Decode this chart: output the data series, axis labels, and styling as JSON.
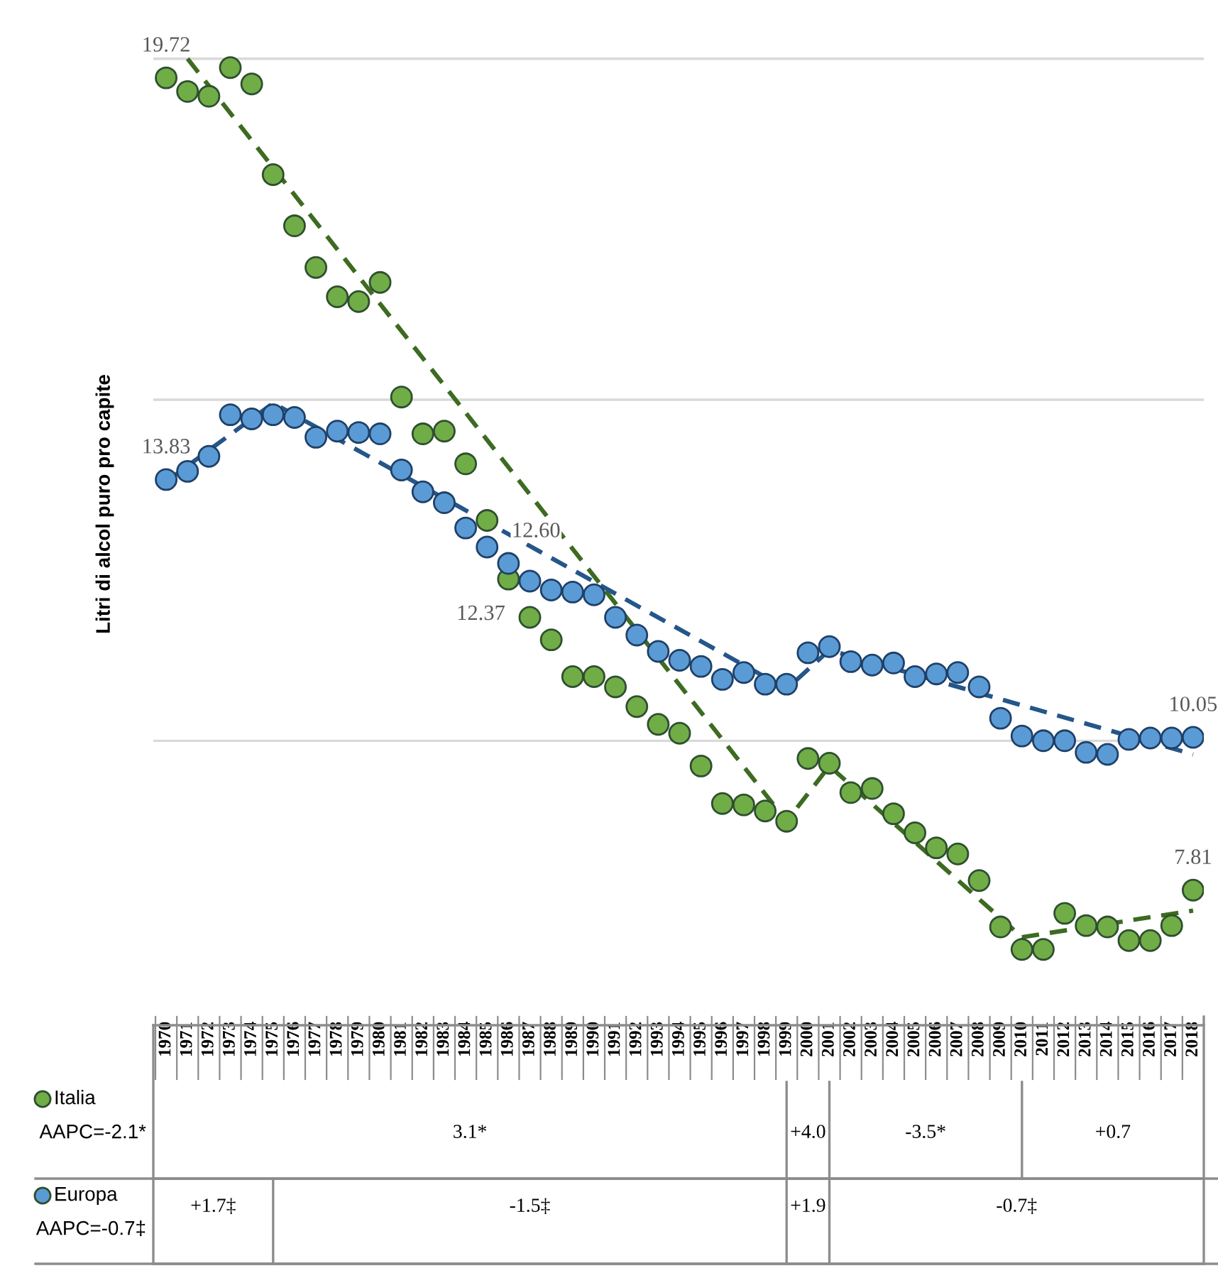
{
  "chart_data": {
    "type": "scatter",
    "ylabel": "Litri di alcol puro pro capite",
    "x": [
      1970,
      1971,
      1972,
      1973,
      1974,
      1975,
      1976,
      1977,
      1978,
      1979,
      1980,
      1981,
      1982,
      1983,
      1984,
      1985,
      1986,
      1987,
      1988,
      1989,
      1990,
      1991,
      1992,
      1993,
      1994,
      1995,
      1996,
      1997,
      1998,
      1999,
      2000,
      2001,
      2002,
      2003,
      2004,
      2005,
      2006,
      2007,
      2008,
      2009,
      2010,
      2011,
      2012,
      2013,
      2014,
      2015,
      2016,
      2017,
      2018
    ],
    "series": [
      {
        "name": "Italia",
        "marker": "circle",
        "color": "#70ad47",
        "values": [
          19.72,
          19.52,
          19.45,
          19.87,
          19.63,
          18.3,
          17.55,
          16.94,
          16.51,
          16.44,
          16.72,
          15.04,
          14.5,
          14.54,
          14.06,
          13.23,
          12.37,
          11.81,
          11.48,
          10.94,
          10.94,
          10.79,
          10.5,
          10.24,
          10.11,
          9.63,
          9.08,
          9.06,
          8.97,
          8.82,
          9.74,
          9.67,
          9.24,
          9.3,
          8.93,
          8.65,
          8.43,
          8.34,
          7.95,
          7.27,
          6.94,
          6.94,
          7.47,
          7.29,
          7.27,
          7.07,
          7.07,
          7.29,
          7.81
        ],
        "value_labels": [
          "19.72",
          null,
          null,
          null,
          null,
          null,
          null,
          null,
          null,
          null,
          null,
          null,
          null,
          null,
          null,
          null,
          "12.37",
          null,
          null,
          null,
          null,
          null,
          null,
          null,
          null,
          null,
          null,
          null,
          null,
          null,
          null,
          null,
          null,
          null,
          null,
          null,
          null,
          null,
          null,
          null,
          null,
          null,
          null,
          null,
          null,
          null,
          null,
          null,
          "7.81"
        ]
      },
      {
        "name": "Europa",
        "marker": "circle",
        "color": "#5b9bd5",
        "values": [
          13.83,
          13.95,
          14.17,
          14.78,
          14.72,
          14.78,
          14.74,
          14.45,
          14.54,
          14.52,
          14.5,
          13.97,
          13.65,
          13.49,
          13.12,
          12.84,
          12.6,
          12.34,
          12.21,
          12.18,
          12.14,
          11.81,
          11.55,
          11.31,
          11.18,
          11.09,
          10.9,
          11.0,
          10.83,
          10.83,
          11.29,
          11.38,
          11.16,
          11.11,
          11.14,
          10.94,
          10.98,
          11.0,
          10.79,
          10.33,
          10.07,
          10.0,
          10.0,
          9.83,
          9.8,
          10.02,
          10.04,
          10.04,
          10.05
        ],
        "value_labels": [
          "13.83",
          null,
          null,
          null,
          null,
          null,
          null,
          null,
          null,
          null,
          null,
          null,
          null,
          null,
          null,
          null,
          "12.60",
          null,
          null,
          null,
          null,
          null,
          null,
          null,
          null,
          null,
          null,
          null,
          null,
          null,
          null,
          null,
          null,
          null,
          null,
          null,
          null,
          null,
          null,
          null,
          null,
          null,
          null,
          null,
          null,
          null,
          null,
          null,
          "10.05"
        ]
      },
      {
        "type": "line",
        "marker": "none",
        "color": "#3d6b21",
        "line_style": "dashed",
        "x": [
          1971,
          1999,
          2001,
          2010,
          2018
        ],
        "values": [
          20.0,
          8.82,
          9.63,
          7.12,
          7.51
        ]
      },
      {
        "type": "line",
        "marker": "none",
        "color": "#24568a",
        "line_style": "dashed",
        "x": [
          1970,
          1975,
          1999,
          2001,
          2018
        ],
        "values": [
          13.8,
          14.95,
          10.76,
          11.33,
          9.8
        ]
      }
    ],
    "xlim": [
      1969.4,
      2018.5
    ],
    "xticks": [
      1970,
      1971,
      1972,
      1973,
      1974,
      1975,
      1976,
      1977,
      1978,
      1979,
      1980,
      1981,
      1982,
      1983,
      1984,
      1985,
      1986,
      1987,
      1988,
      1989,
      1990,
      1991,
      1992,
      1993,
      1994,
      1995,
      1996,
      1997,
      1998,
      1999,
      2000,
      2001,
      2002,
      2003,
      2004,
      2005,
      2006,
      2007,
      2008,
      2009,
      2010,
      2011,
      2012,
      2013,
      2014,
      2015,
      2016,
      2017,
      2018
    ],
    "ref_lines": [
      {
        "axis": "y",
        "value": 10,
        "color": "#d9d9d9"
      },
      {
        "axis": "y",
        "value": 15,
        "color": "#d9d9d9"
      },
      {
        "axis": "y",
        "value": 20,
        "color": "#d9d9d9"
      }
    ],
    "tick_labels": "x",
    "legend": "bottom left",
    "annotations": [
      "AAPC=-2.1*",
      "AAPC=-0.7‡",
      "3.1*",
      "+4.0",
      "-3.5*",
      "+0.7",
      "+1.7‡",
      "-1.5‡",
      "+1.9",
      "-0.7‡"
    ]
  }
}
